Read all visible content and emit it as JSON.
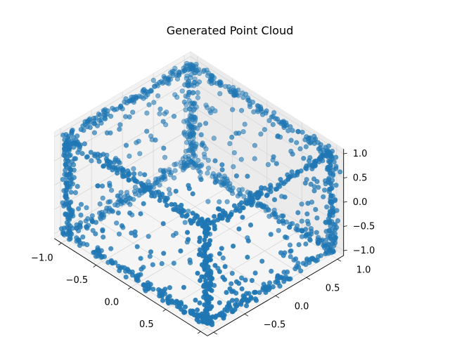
{
  "chart_data": {
    "type": "scatter",
    "projection": "3d",
    "title": "Generated Point Cloud",
    "xlabel": "",
    "ylabel": "",
    "zlabel": "",
    "xlim": [
      -1.1,
      1.1
    ],
    "ylim": [
      -1.1,
      1.1
    ],
    "zlim": [
      -1.1,
      1.1
    ],
    "x_ticks": [
      "−1.0",
      "−0.5",
      "0.0",
      "0.5",
      "1.0"
    ],
    "y_ticks": [
      "−1.0",
      "−0.5",
      "0.0",
      "0.5",
      "1.0"
    ],
    "z_ticks": [
      "−1.0",
      "−0.5",
      "0.0",
      "0.5",
      "1.0"
    ],
    "x_tick_values": [
      -1.0,
      -0.5,
      0.0,
      0.5,
      1.0
    ],
    "y_tick_values": [
      -1.0,
      -0.5,
      0.0,
      0.5,
      1.0
    ],
    "z_tick_values": [
      -1.0,
      -0.5,
      0.0,
      0.5,
      1.0
    ],
    "grid": true,
    "marker_color": "#1f77b4",
    "shape": "points concentrated along the 12 edges of a cube spanning [-1, 1] on each axis, with sparser points on the faces",
    "series": [
      {
        "values_sample": [
          {
            "x": -1.0,
            "y": -1.0,
            "z": -1.0
          },
          {
            "x": -0.5,
            "y": -1.0,
            "z": -1.0
          },
          {
            "x": 0.0,
            "y": -1.0,
            "z": -1.0
          },
          {
            "x": 0.5,
            "y": -1.0,
            "z": -1.0
          },
          {
            "x": 1.0,
            "y": -1.0,
            "z": -1.0
          },
          {
            "x": -1.0,
            "y": 1.0,
            "z": -1.0
          },
          {
            "x": 0.0,
            "y": 1.0,
            "z": -1.0
          },
          {
            "x": 1.0,
            "y": 1.0,
            "z": -1.0
          },
          {
            "x": -1.0,
            "y": -1.0,
            "z": 1.0
          },
          {
            "x": 0.0,
            "y": -1.0,
            "z": 1.0
          },
          {
            "x": 1.0,
            "y": -1.0,
            "z": 1.0
          },
          {
            "x": -1.0,
            "y": 1.0,
            "z": 1.0
          },
          {
            "x": 0.0,
            "y": 1.0,
            "z": 1.0
          },
          {
            "x": 1.0,
            "y": 1.0,
            "z": 1.0
          },
          {
            "x": -1.0,
            "y": 0.0,
            "z": -1.0
          },
          {
            "x": 1.0,
            "y": 0.0,
            "z": -1.0
          },
          {
            "x": -1.0,
            "y": 0.0,
            "z": 1.0
          },
          {
            "x": 1.0,
            "y": 0.0,
            "z": 1.0
          },
          {
            "x": -1.0,
            "y": -1.0,
            "z": 0.0
          },
          {
            "x": 1.0,
            "y": -1.0,
            "z": 0.0
          },
          {
            "x": -1.0,
            "y": 1.0,
            "z": 0.0
          },
          {
            "x": 1.0,
            "y": 1.0,
            "z": 0.0
          }
        ]
      }
    ],
    "point_count_approx": 2000
  }
}
